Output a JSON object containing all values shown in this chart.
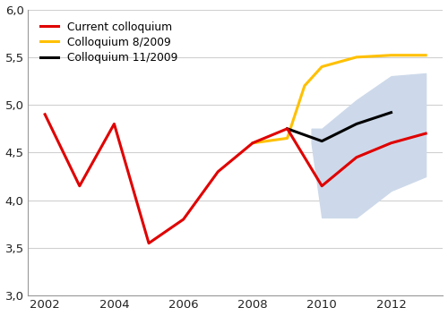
{
  "red_x": [
    2002,
    2003,
    2004,
    2005,
    2006,
    2007,
    2008,
    2009,
    2010,
    2011,
    2012,
    2013
  ],
  "red_y": [
    4.9,
    4.15,
    4.8,
    3.55,
    3.8,
    4.3,
    4.6,
    4.75,
    4.15,
    4.45,
    4.6,
    4.7
  ],
  "yellow_x": [
    2008,
    2009,
    2009.5,
    2010,
    2011,
    2012,
    2013
  ],
  "yellow_y": [
    4.6,
    4.65,
    5.2,
    5.4,
    5.5,
    5.52,
    5.52
  ],
  "black_x": [
    2009,
    2010,
    2011,
    2012
  ],
  "black_y": [
    4.75,
    4.62,
    4.8,
    4.92
  ],
  "shade_upper_x": [
    2009.7,
    2010,
    2011,
    2012,
    2013
  ],
  "shade_upper_y": [
    4.75,
    4.75,
    5.05,
    5.3,
    5.33
  ],
  "shade_lower_y": [
    4.6,
    3.82,
    3.82,
    4.1,
    4.25
  ],
  "xlim": [
    2001.5,
    2013.5
  ],
  "ylim": [
    3.0,
    6.0
  ],
  "yticks": [
    3.0,
    3.5,
    4.0,
    4.5,
    5.0,
    5.5,
    6.0
  ],
  "xticks": [
    2002,
    2004,
    2006,
    2008,
    2010,
    2012
  ],
  "red_color": "#e00000",
  "yellow_color": "#ffc000",
  "black_color": "#000000",
  "shade_color": "#cdd9ea",
  "grid_color": "#d0d0d0",
  "legend_labels": [
    "Current colloquium",
    "Colloquium 8/2009",
    "Colloquium 11/2009"
  ],
  "bg_color": "#ffffff",
  "figwidth": 5.0,
  "figheight": 3.53,
  "dpi": 100
}
